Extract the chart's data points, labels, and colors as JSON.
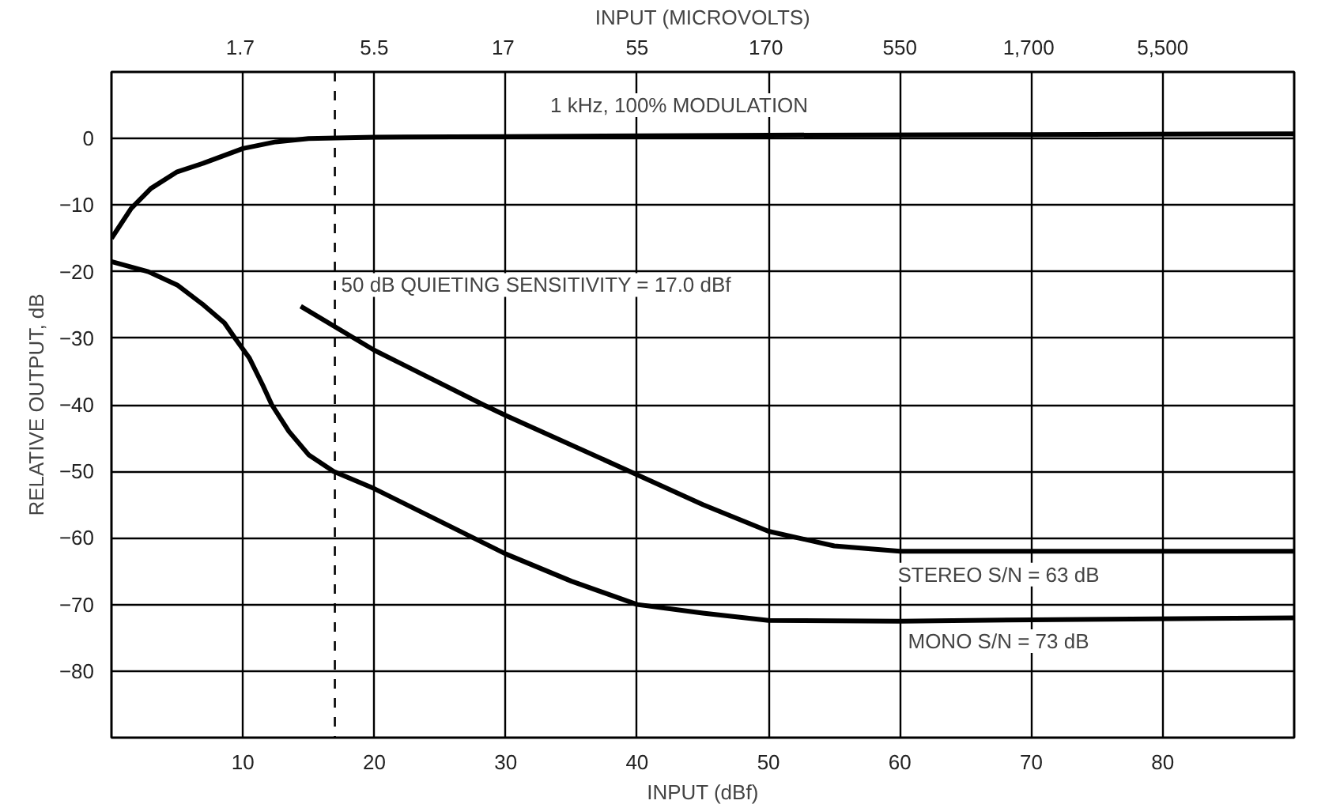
{
  "chart_data": {
    "type": "line",
    "xlabel": "INPUT (dBf)",
    "ylabel": "RELATIVE OUTPUT, dB",
    "x2label": "INPUT (MICROVOLTS)",
    "xlim": [
      0,
      90
    ],
    "xticks": [
      10,
      20,
      30,
      40,
      50,
      60,
      70,
      80
    ],
    "x2lim": [
      0.55,
      17400
    ],
    "x2ticks": [
      1.7,
      5.5,
      17,
      55,
      170,
      550,
      {
        "value": 1700,
        "label": "1,700"
      },
      {
        "value": 5500,
        "label": "5,500"
      }
    ],
    "log": "x2",
    "ylim": [
      -90,
      10
    ],
    "yticks": [
      0,
      -10,
      -20,
      -30,
      -40,
      -50,
      -60,
      -70,
      -80
    ],
    "grid": true,
    "line_style": "solid",
    "series": [
      {
        "color": "#000000",
        "x": [
          0,
          1.5,
          3,
          5,
          7,
          10,
          12.5,
          15,
          20,
          30,
          50,
          70,
          90
        ],
        "values": [
          -15,
          -10.5,
          -7.5,
          -5,
          -3.7,
          -1.5,
          -0.5,
          0,
          0.2,
          0.3,
          0.5,
          0.6,
          0.7
        ]
      },
      {
        "color": "#000000",
        "x": [
          0,
          2.8,
          5,
          7,
          8.6,
          9.4,
          10.5,
          11.5,
          12.2,
          13.5,
          15,
          16.9,
          20,
          25,
          30,
          35,
          40,
          45,
          50,
          60,
          70,
          90
        ],
        "values": [
          -18.5,
          -20,
          -22,
          -25,
          -27.7,
          -30,
          -33,
          -37,
          -40,
          -44,
          -47.5,
          -50,
          -52.6,
          -57.5,
          -62.4,
          -66.5,
          -70,
          -71.3,
          -72.4,
          -72.5,
          -72.3,
          -72
        ]
      },
      {
        "color": "#000000",
        "x": [
          14.4,
          20,
          28.3,
          30,
          40,
          45,
          50,
          55,
          60,
          70,
          90
        ],
        "values": [
          -25.2,
          -31.8,
          -40,
          -41.6,
          -50.5,
          -55,
          -59,
          -61.2,
          -62,
          -62,
          -62
        ]
      }
    ],
    "ref_lines": [
      {
        "axis": "x",
        "value": 17,
        "label": "50 dB QUIETING SENSITIVITY = 17.0 dBf",
        "line_style": "dashed",
        "color": "#000000"
      }
    ],
    "annotations": [
      "1 kHz, 100% MODULATION",
      "STEREO S/N = 63 dB",
      "MONO S/N = 73 dB"
    ]
  }
}
